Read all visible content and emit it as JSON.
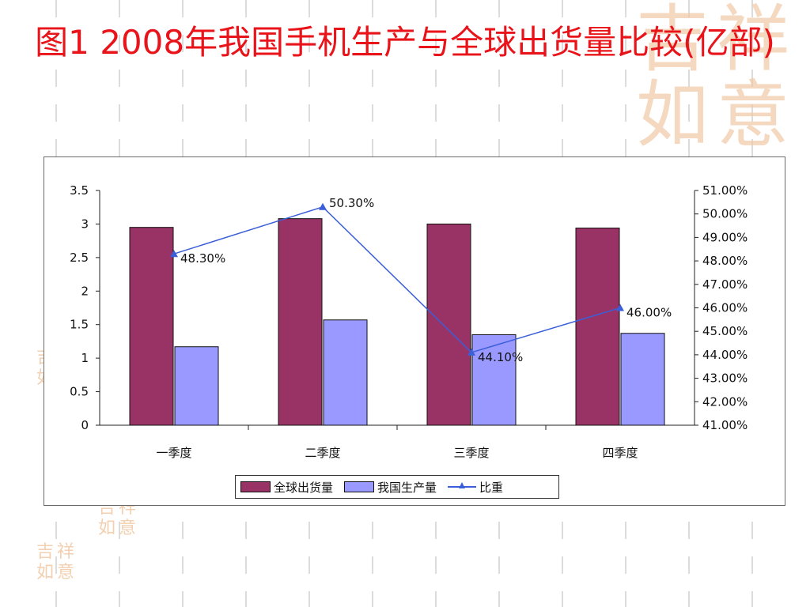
{
  "slide": {
    "title": "图1 2008年我国手机生产与全球出货量比较(亿部)",
    "title_color": "#e8141a"
  },
  "decor": {
    "seal_chars": [
      "吉",
      "祥",
      "如",
      "意"
    ],
    "seal_color": "#f0c8a4"
  },
  "chart_data": {
    "type": "bar",
    "title": "",
    "categories": [
      "一季度",
      "二季度",
      "三季度",
      "四季度"
    ],
    "series": [
      {
        "name": "全球出货量",
        "type": "bar",
        "axis": "left",
        "values": [
          2.95,
          3.08,
          3.0,
          2.94
        ],
        "color": "#993366"
      },
      {
        "name": "我国生产量",
        "type": "bar",
        "axis": "left",
        "values": [
          1.17,
          1.57,
          1.35,
          1.37
        ],
        "color": "#9999ff"
      },
      {
        "name": "比重",
        "type": "line",
        "axis": "right",
        "values": [
          48.3,
          50.3,
          44.1,
          46.0
        ],
        "color": "#3a5fd8",
        "labels": [
          "48.30%",
          "50.30%",
          "44.10%",
          "46.00%"
        ]
      }
    ],
    "y_left": {
      "ticks": [
        "0",
        "0.5",
        "1",
        "1.5",
        "2",
        "2.5",
        "3",
        "3.5"
      ],
      "lim": [
        0,
        3.5
      ]
    },
    "y_right": {
      "ticks": [
        "41.00%",
        "42.00%",
        "43.00%",
        "44.00%",
        "45.00%",
        "46.00%",
        "47.00%",
        "48.00%",
        "49.00%",
        "50.00%",
        "51.00%"
      ],
      "lim": [
        41,
        51
      ]
    },
    "legend_position": "bottom",
    "grid": false
  }
}
